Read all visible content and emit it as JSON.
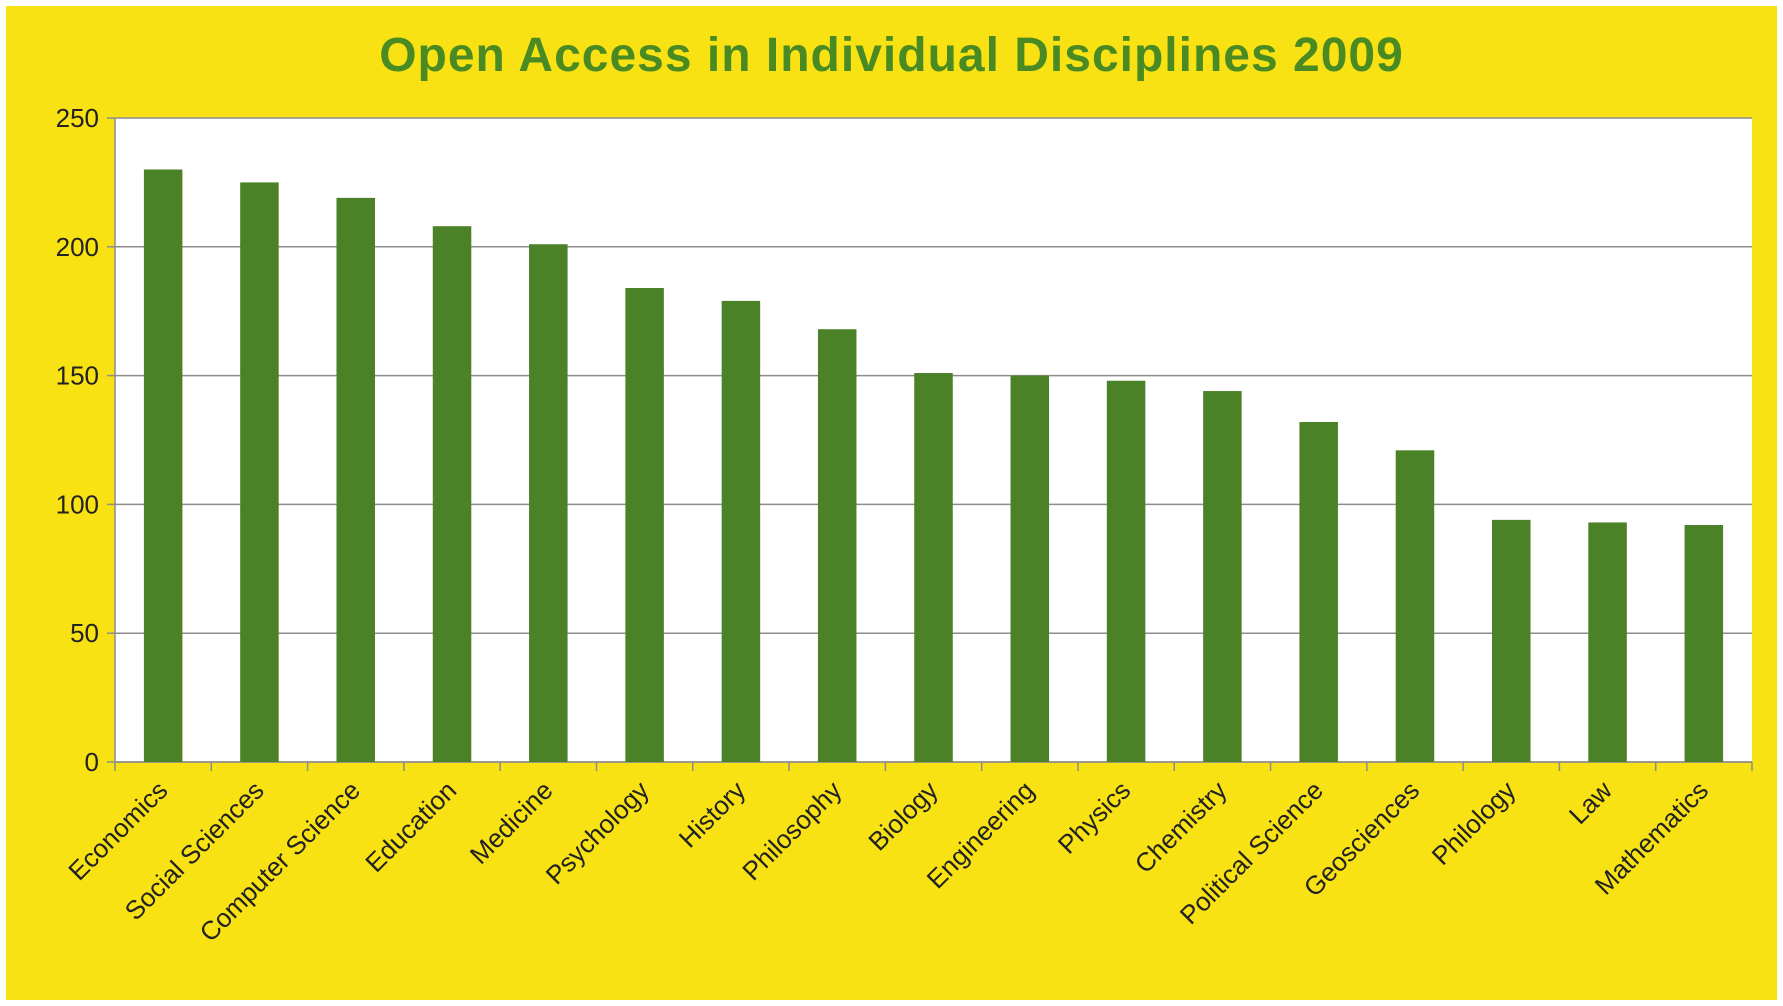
{
  "chart_data": {
    "type": "bar",
    "title": "Open Access in Individual Disciplines 2009",
    "xlabel": "",
    "ylabel": "",
    "ylim": [
      0,
      250
    ],
    "yticks": [
      0,
      50,
      100,
      150,
      200,
      250
    ],
    "grid": true,
    "categories": [
      "Economics",
      "Social Sciences",
      "Computer Science",
      "Education",
      "Medicine",
      "Psychology",
      "History",
      "Philosophy",
      "Biology",
      "Engineering",
      "Physics",
      "Chemistry",
      "Political Science",
      "Geosciences",
      "Philology",
      "Law",
      "Mathematics"
    ],
    "values": [
      230,
      225,
      219,
      208,
      201,
      184,
      179,
      168,
      151,
      150,
      148,
      144,
      132,
      121,
      94,
      93,
      92
    ]
  },
  "colors": {
    "background": "#f8e213",
    "plot_area": "#ffffff",
    "bar": "#4c8227",
    "title": "#4a8a22",
    "grid": "#8c8c8c"
  }
}
